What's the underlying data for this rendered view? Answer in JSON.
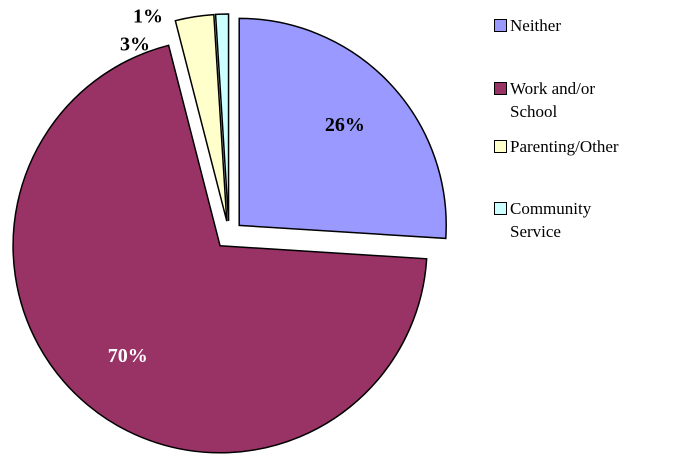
{
  "chart_data": {
    "type": "pie",
    "categories": [
      "Neither",
      "Work and/or School",
      "Parenting/Other",
      "Community Service"
    ],
    "values": [
      26,
      70,
      3,
      1
    ],
    "value_labels": [
      "26%",
      "70%",
      "3%",
      "1%"
    ],
    "colors": [
      "#9999ff",
      "#993366",
      "#ffffcc",
      "#ccffff"
    ],
    "legend": "right"
  }
}
